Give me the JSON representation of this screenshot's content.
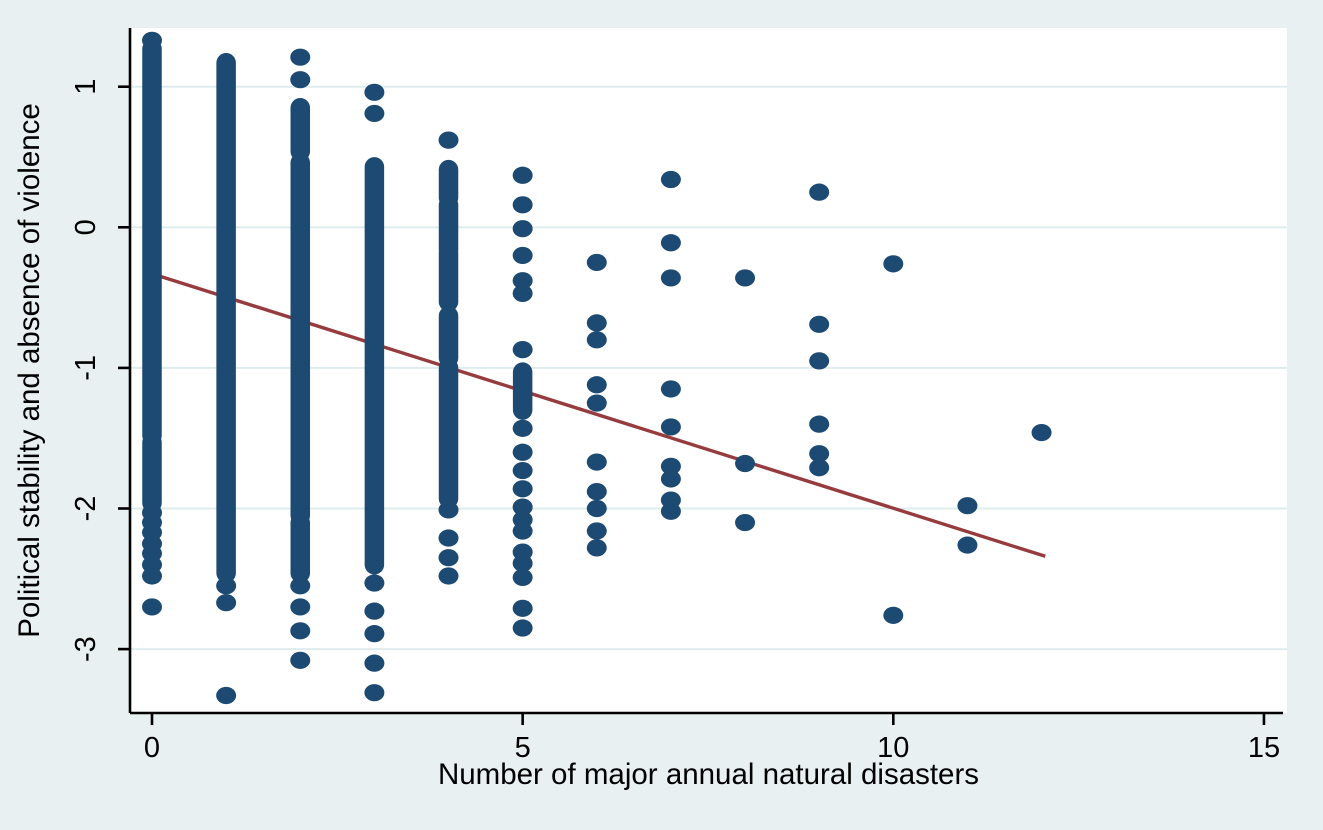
{
  "chart_data": {
    "type": "scatter",
    "title": "",
    "xlabel": "Number of major annual natural disasters",
    "ylabel": "Political stability and absence of violence",
    "xticks": [
      0,
      5,
      10,
      15
    ],
    "x_tick_labels": [
      "0",
      "5",
      "10",
      "15"
    ],
    "yticks": [
      1,
      0,
      -1,
      -2,
      -3
    ],
    "y_tick_labels": [
      "1",
      "0",
      "-1",
      "-2",
      "-3"
    ],
    "xlim": [
      -0.3,
      15.3
    ],
    "ylim": [
      -3.45,
      1.4
    ],
    "grid": true,
    "legend": false,
    "marker_shape": "circle",
    "marker_color": "#1d4a73",
    "fit_line_color": "#963b3e",
    "grid_color": "#dfecee",
    "axis_color": "#000000",
    "plot_bg": "#ffffff",
    "page_bg": "#e8f0f2",
    "fit_line": {
      "x_start": 0,
      "y_start": -0.33,
      "x_end": 12.05,
      "y_end": -2.34
    },
    "columns": [
      {
        "x": 0,
        "segments": [
          [
            1.27,
            -1.48
          ],
          [
            -1.53,
            -1.96
          ]
        ],
        "points": [
          1.33,
          -2.03,
          -2.1,
          -2.17,
          -2.25,
          -2.32,
          -2.4,
          -2.48,
          -2.7
        ]
      },
      {
        "x": 1,
        "segments": [
          [
            1.17,
            -2.46
          ]
        ],
        "points": [
          -2.55,
          -2.67,
          -3.33
        ]
      },
      {
        "x": 2,
        "segments": [
          [
            0.85,
            0.54
          ],
          [
            0.46,
            -2.05
          ],
          [
            -2.1,
            -2.46
          ]
        ],
        "points": [
          1.21,
          1.05,
          -2.55,
          -2.7,
          -2.87,
          -3.08
        ]
      },
      {
        "x": 3,
        "segments": [
          [
            0.43,
            -2.4
          ]
        ],
        "points": [
          0.96,
          0.81,
          -2.53,
          -2.73,
          -2.89,
          -3.1,
          -3.31
        ]
      },
      {
        "x": 4,
        "segments": [
          [
            0.41,
            0.21
          ],
          [
            0.16,
            -0.16
          ],
          [
            -0.18,
            -0.53
          ],
          [
            -0.63,
            -0.93
          ],
          [
            -1.0,
            -1.93
          ]
        ],
        "points": [
          0.62,
          -2.01,
          -2.21,
          -2.35,
          -2.48
        ]
      },
      {
        "x": 5,
        "segments": [
          [
            -1.03,
            -1.3
          ]
        ],
        "points": [
          0.37,
          0.16,
          -0.01,
          -0.2,
          -0.38,
          -0.47,
          -0.87,
          -1.43,
          -1.6,
          -1.73,
          -1.86,
          -1.99,
          -2.08,
          -2.16,
          -2.31,
          -2.39,
          -2.49,
          -2.71,
          -2.85
        ]
      },
      {
        "x": 6,
        "segments": [],
        "points": [
          -0.25,
          -0.68,
          -0.8,
          -1.12,
          -1.25,
          -1.67,
          -1.88,
          -2.0,
          -2.16,
          -2.28
        ]
      },
      {
        "x": 7,
        "segments": [],
        "points": [
          0.34,
          -0.11,
          -0.36,
          -1.15,
          -1.42,
          -1.7,
          -1.79,
          -1.94,
          -2.02
        ]
      },
      {
        "x": 8,
        "segments": [],
        "points": [
          -0.36,
          -1.68,
          -2.1
        ]
      },
      {
        "x": 9,
        "segments": [],
        "points": [
          0.25,
          -0.69,
          -0.95,
          -1.4,
          -1.61,
          -1.71
        ]
      },
      {
        "x": 10,
        "segments": [],
        "points": [
          -0.26,
          -2.76
        ]
      },
      {
        "x": 11,
        "segments": [],
        "points": [
          -1.98,
          -2.26
        ]
      },
      {
        "x": 12,
        "segments": [],
        "points": [
          -1.46
        ]
      }
    ]
  }
}
